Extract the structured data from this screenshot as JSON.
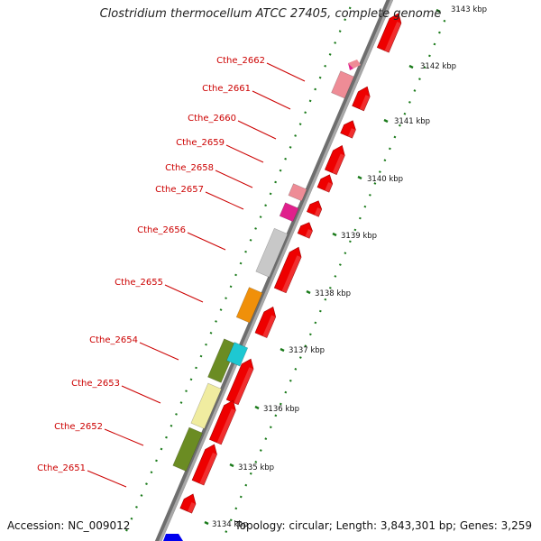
{
  "title": "Clostridium thermocellum ATCC 27405, complete genome",
  "accession": "Accession: NC_009012",
  "summary": "Topology: circular; Length: 3,843,301 bp; Genes: 3,259",
  "ruler_labels": [
    "3143 kbp",
    "3142 kbp",
    "3141 kbp",
    "3140 kbp",
    "3139 kbp",
    "3138 kbp",
    "3137 kbp",
    "3136 kbp",
    "3135 kbp",
    "3134 kbp"
  ],
  "gene_labels": [
    "Cthe_2662",
    "Cthe_2661",
    "Cthe_2660",
    "Cthe_2659",
    "Cthe_2658",
    "Cthe_2657",
    "Cthe_2656",
    "Cthe_2655",
    "Cthe_2654",
    "Cthe_2653",
    "Cthe_2652",
    "Cthe_2651"
  ],
  "colors": {
    "label": "#cc0000",
    "backbone": "#8a8a8a",
    "tick": "#1a7a1a",
    "cds": "#ee0000",
    "pink": "#ee8c96",
    "magenta": "#e0208c",
    "grey": "#c8c8c8",
    "orange": "#f0900a",
    "olive": "#6b8c23",
    "cyan": "#1ec8d2",
    "khaki": "#f0eca0",
    "blue": "#0000ee"
  }
}
